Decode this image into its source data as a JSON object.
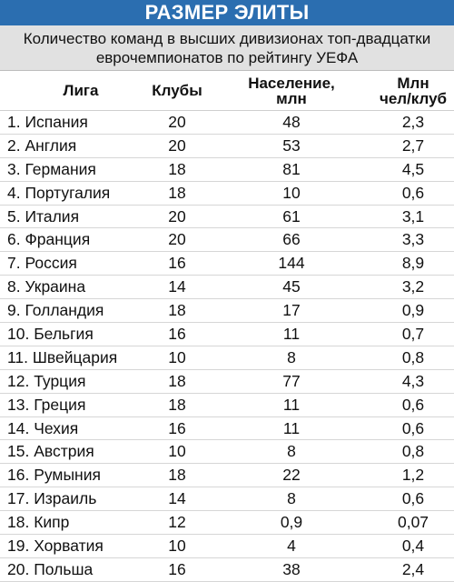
{
  "title": "РАЗМЕР ЭЛИТЫ",
  "subtitle": {
    "line1": "Количество команд в высших дивизионах топ-двадцатки",
    "line2": "еврочемпионатов по рейтингу УЕФА"
  },
  "headers": {
    "league": "Лига",
    "clubs": "Клубы",
    "population_line1": "Население,",
    "population_line2": "млн",
    "ratio_line1": "Млн",
    "ratio_line2": "чел/клуб"
  },
  "rows": [
    {
      "league": "1. Испания",
      "clubs": "20",
      "population": "48",
      "ratio": "2,3"
    },
    {
      "league": "2. Англия",
      "clubs": "20",
      "population": "53",
      "ratio": "2,7"
    },
    {
      "league": "3. Германия",
      "clubs": "18",
      "population": "81",
      "ratio": "4,5"
    },
    {
      "league": "4. Португалия",
      "clubs": "18",
      "population": "10",
      "ratio": "0,6"
    },
    {
      "league": "5. Италия",
      "clubs": "20",
      "population": "61",
      "ratio": "3,1"
    },
    {
      "league": "6. Франция",
      "clubs": "20",
      "population": "66",
      "ratio": "3,3"
    },
    {
      "league": "7. Россия",
      "clubs": "16",
      "population": "144",
      "ratio": "8,9"
    },
    {
      "league": "8. Украина",
      "clubs": "14",
      "population": "45",
      "ratio": "3,2"
    },
    {
      "league": "9. Голландия",
      "clubs": "18",
      "population": "17",
      "ratio": "0,9"
    },
    {
      "league": "10. Бельгия",
      "clubs": "16",
      "population": "11",
      "ratio": "0,7"
    },
    {
      "league": "11. Швейцария",
      "clubs": "10",
      "population": "8",
      "ratio": "0,8"
    },
    {
      "league": "12. Турция",
      "clubs": "18",
      "population": "77",
      "ratio": "4,3"
    },
    {
      "league": "13. Греция",
      "clubs": "18",
      "population": "11",
      "ratio": "0,6"
    },
    {
      "league": "14. Чехия",
      "clubs": "16",
      "population": "11",
      "ratio": "0,6"
    },
    {
      "league": "15. Австрия",
      "clubs": "10",
      "population": "8",
      "ratio": "0,8"
    },
    {
      "league": "16. Румыния",
      "clubs": "18",
      "population": "22",
      "ratio": "1,2"
    },
    {
      "league": "17. Израиль",
      "clubs": "14",
      "population": "8",
      "ratio": "0,6"
    },
    {
      "league": "18. Кипр",
      "clubs": "12",
      "population": "0,9",
      "ratio": "0,07"
    },
    {
      "league": "19. Хорватия",
      "clubs": "10",
      "population": "4",
      "ratio": "0,4"
    },
    {
      "league": "20. Польша",
      "clubs": "16",
      "population": "38",
      "ratio": "2,4"
    }
  ]
}
